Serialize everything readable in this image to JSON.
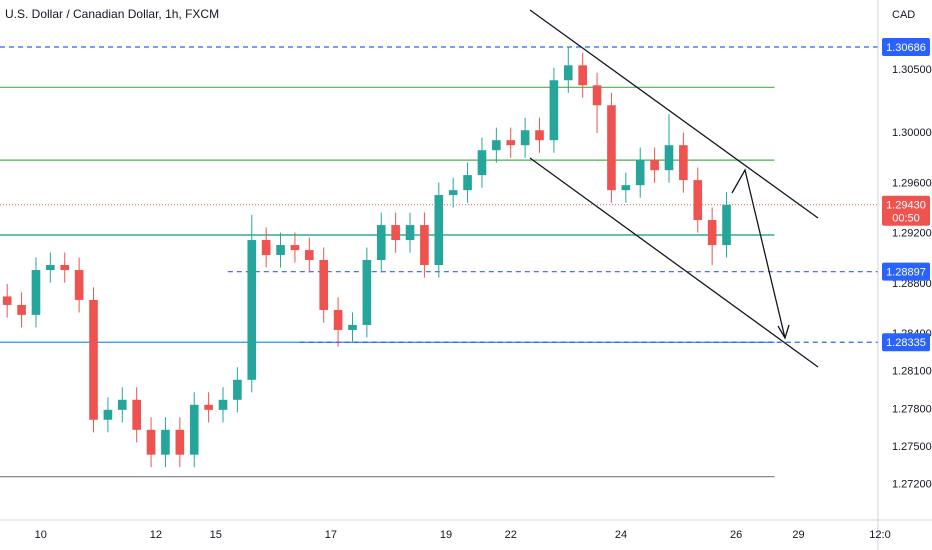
{
  "chart_data": {
    "type": "candlestick",
    "title": "U.S. Dollar / Canadian Dollar, 1h, FXCM",
    "currency": "CAD",
    "x": [
      3,
      9,
      15,
      21,
      27,
      33,
      39,
      45,
      51,
      57,
      63,
      69,
      75,
      81,
      87,
      93,
      99,
      105,
      111,
      117,
      123,
      129,
      135,
      141,
      147,
      153,
      159,
      165,
      171,
      177,
      183,
      189,
      195,
      201,
      207,
      213,
      219,
      225,
      231,
      237,
      243,
      249,
      255,
      261,
      267,
      273,
      279,
      285,
      291,
      297,
      303
    ],
    "open": [
      1.287,
      1.28632,
      1.28553,
      1.2891,
      1.2895,
      1.2891,
      1.28672,
      1.27718,
      1.27797,
      1.27877,
      1.27638,
      1.2744,
      1.27638,
      1.2744,
      1.27837,
      1.27797,
      1.27877,
      1.28036,
      1.29149,
      1.2903,
      1.29109,
      1.29069,
      1.2899,
      1.28592,
      1.28433,
      1.28473,
      1.2899,
      1.29268,
      1.29149,
      1.29268,
      1.2895,
      1.29507,
      1.29546,
      1.29666,
      1.29864,
      1.29944,
      1.29904,
      1.30023,
      1.29944,
      1.30421,
      1.3054,
      1.30381,
      1.30222,
      1.29546,
      1.29586,
      1.29785,
      1.29705,
      1.29904,
      1.29626,
      1.29308,
      1.29109
    ],
    "high": [
      1.288,
      1.28732,
      1.2901,
      1.2905,
      1.2905,
      1.2901,
      1.28772,
      1.27897,
      1.27977,
      1.27977,
      1.27738,
      1.27738,
      1.27738,
      1.27937,
      1.27937,
      1.27977,
      1.28136,
      1.29349,
      1.29249,
      1.29209,
      1.29209,
      1.29169,
      1.2909,
      1.28692,
      1.28573,
      1.2909,
      1.29368,
      1.29368,
      1.29368,
      1.29368,
      1.29607,
      1.29646,
      1.29766,
      1.29964,
      1.30044,
      1.30044,
      1.30123,
      1.30123,
      1.30521,
      1.30686,
      1.3064,
      1.30481,
      1.30322,
      1.29686,
      1.29885,
      1.29885,
      1.3015,
      1.30004,
      1.29726,
      1.29408,
      1.2953
    ],
    "low": [
      1.28532,
      1.28453,
      1.28453,
      1.2881,
      1.2881,
      1.28572,
      1.27618,
      1.27618,
      1.27697,
      1.27538,
      1.2734,
      1.2734,
      1.2734,
      1.2734,
      1.27697,
      1.27697,
      1.27777,
      1.27936,
      1.2893,
      1.2893,
      1.28969,
      1.2889,
      1.28492,
      1.283,
      1.28335,
      1.28373,
      1.2889,
      1.29049,
      1.29049,
      1.2885,
      1.2885,
      1.29407,
      1.29446,
      1.29566,
      1.29764,
      1.29804,
      1.29804,
      1.29844,
      1.29844,
      1.30321,
      1.30281,
      1.3,
      1.29446,
      1.29446,
      1.29486,
      1.29605,
      1.29605,
      1.29526,
      1.29208,
      1.2895,
      1.29009
    ],
    "close": [
      1.28632,
      1.28553,
      1.2891,
      1.2895,
      1.2891,
      1.28672,
      1.27718,
      1.27797,
      1.27877,
      1.27638,
      1.2744,
      1.27638,
      1.2744,
      1.27837,
      1.27797,
      1.27877,
      1.28036,
      1.29149,
      1.2903,
      1.29109,
      1.29069,
      1.2899,
      1.28592,
      1.28433,
      1.28473,
      1.2899,
      1.29268,
      1.29149,
      1.29268,
      1.2895,
      1.29507,
      1.29546,
      1.29666,
      1.29864,
      1.29944,
      1.29904,
      1.30023,
      1.29944,
      1.30421,
      1.3054,
      1.30381,
      1.30222,
      1.29546,
      1.29586,
      1.29785,
      1.29705,
      1.29904,
      1.29626,
      1.29308,
      1.29109,
      1.2943
    ],
    "up_color": "#26a69a",
    "down_color": "#ef5350",
    "xlim": [
      0,
      367
    ],
    "xticks": [
      {
        "value": 17,
        "label": "10"
      },
      {
        "value": 65,
        "label": "12"
      },
      {
        "value": 90,
        "label": "15"
      },
      {
        "value": 138,
        "label": "17"
      },
      {
        "value": 186,
        "label": "19"
      },
      {
        "value": 213,
        "label": "22"
      },
      {
        "value": 259,
        "label": "24"
      },
      {
        "value": 307,
        "label": "26"
      },
      {
        "value": 333,
        "label": "29"
      },
      {
        "value": 367,
        "label": "12:0"
      }
    ],
    "ylim": [
      1.2692,
      1.3106
    ],
    "yticks": [
      {
        "value": 1.305,
        "label": "1.30500"
      },
      {
        "value": 1.3,
        "label": "1.30000"
      },
      {
        "value": 1.296,
        "label": "1.29600"
      },
      {
        "value": 1.292,
        "label": "1.29200"
      },
      {
        "value": 1.288,
        "label": "1.28800"
      },
      {
        "value": 1.284,
        "label": "1.28400"
      },
      {
        "value": 1.281,
        "label": "1.28100"
      },
      {
        "value": 1.278,
        "label": "1.27800"
      },
      {
        "value": 1.275,
        "label": "1.27500"
      },
      {
        "value": 1.272,
        "label": "1.27200"
      }
    ],
    "grid": false,
    "hlines": [
      {
        "value": 1.30686,
        "label": "1.30686",
        "color": "#2962ff",
        "style": "dashed",
        "from": 0,
        "to": 367
      },
      {
        "value": 1.30365,
        "color": "#4caf50",
        "style": "solid",
        "from": 0,
        "to": 323
      },
      {
        "value": 1.29785,
        "color": "#4caf50",
        "style": "solid",
        "from": 0,
        "to": 323
      },
      {
        "value": 1.29189,
        "color": "#089981",
        "style": "solid",
        "from": 0,
        "to": 323
      },
      {
        "value": 1.28897,
        "label": "1.28897",
        "color": "#2962ff",
        "style": "dashed",
        "from": 95,
        "to": 367
      },
      {
        "value": 1.28335,
        "color": "#2196f3",
        "style": "solid",
        "from": 0,
        "to": 323
      },
      {
        "value": 1.28335,
        "label": "1.28335",
        "color": "#2962ff",
        "style": "dashed",
        "from": 125,
        "to": 367
      },
      {
        "value": 1.27265,
        "color": "#787b86",
        "style": "solid",
        "from": 0,
        "to": 323
      }
    ],
    "last": {
      "value": 1.2943,
      "label": "1.29430",
      "countdown": "00:50",
      "color": "#ef5350"
    }
  }
}
